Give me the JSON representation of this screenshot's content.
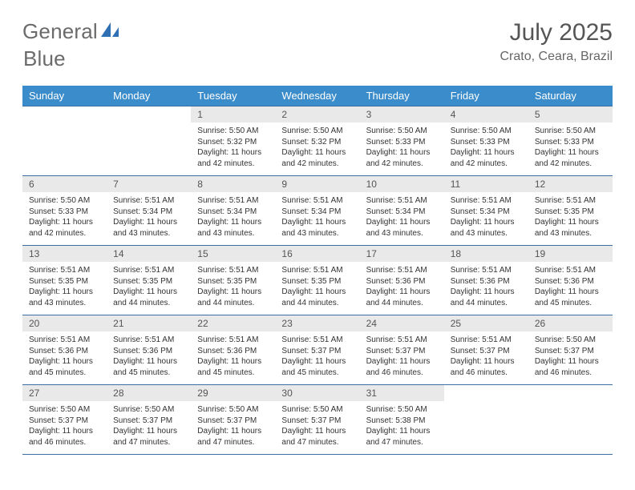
{
  "brand": {
    "name_part1": "General",
    "name_part2": "Blue",
    "logo_color": "#2f6fb3",
    "text_color": "#6b6b6b"
  },
  "header": {
    "title": "July 2025",
    "location": "Crato, Ceara, Brazil"
  },
  "theme": {
    "header_bg": "#3b8ccb",
    "header_fg": "#ffffff",
    "row_border": "#3b6ea5",
    "daynum_bg": "#e9e9e9",
    "daynum_fg": "#555555",
    "body_fg": "#333333",
    "page_bg": "#ffffff"
  },
  "day_names": [
    "Sunday",
    "Monday",
    "Tuesday",
    "Wednesday",
    "Thursday",
    "Friday",
    "Saturday"
  ],
  "calendar": {
    "first_weekday_index": 2,
    "days_in_month": 31
  },
  "days": {
    "1": {
      "sunrise": "5:50 AM",
      "sunset": "5:32 PM",
      "daylight": "11 hours and 42 minutes."
    },
    "2": {
      "sunrise": "5:50 AM",
      "sunset": "5:32 PM",
      "daylight": "11 hours and 42 minutes."
    },
    "3": {
      "sunrise": "5:50 AM",
      "sunset": "5:33 PM",
      "daylight": "11 hours and 42 minutes."
    },
    "4": {
      "sunrise": "5:50 AM",
      "sunset": "5:33 PM",
      "daylight": "11 hours and 42 minutes."
    },
    "5": {
      "sunrise": "5:50 AM",
      "sunset": "5:33 PM",
      "daylight": "11 hours and 42 minutes."
    },
    "6": {
      "sunrise": "5:50 AM",
      "sunset": "5:33 PM",
      "daylight": "11 hours and 42 minutes."
    },
    "7": {
      "sunrise": "5:51 AM",
      "sunset": "5:34 PM",
      "daylight": "11 hours and 43 minutes."
    },
    "8": {
      "sunrise": "5:51 AM",
      "sunset": "5:34 PM",
      "daylight": "11 hours and 43 minutes."
    },
    "9": {
      "sunrise": "5:51 AM",
      "sunset": "5:34 PM",
      "daylight": "11 hours and 43 minutes."
    },
    "10": {
      "sunrise": "5:51 AM",
      "sunset": "5:34 PM",
      "daylight": "11 hours and 43 minutes."
    },
    "11": {
      "sunrise": "5:51 AM",
      "sunset": "5:34 PM",
      "daylight": "11 hours and 43 minutes."
    },
    "12": {
      "sunrise": "5:51 AM",
      "sunset": "5:35 PM",
      "daylight": "11 hours and 43 minutes."
    },
    "13": {
      "sunrise": "5:51 AM",
      "sunset": "5:35 PM",
      "daylight": "11 hours and 43 minutes."
    },
    "14": {
      "sunrise": "5:51 AM",
      "sunset": "5:35 PM",
      "daylight": "11 hours and 44 minutes."
    },
    "15": {
      "sunrise": "5:51 AM",
      "sunset": "5:35 PM",
      "daylight": "11 hours and 44 minutes."
    },
    "16": {
      "sunrise": "5:51 AM",
      "sunset": "5:35 PM",
      "daylight": "11 hours and 44 minutes."
    },
    "17": {
      "sunrise": "5:51 AM",
      "sunset": "5:36 PM",
      "daylight": "11 hours and 44 minutes."
    },
    "18": {
      "sunrise": "5:51 AM",
      "sunset": "5:36 PM",
      "daylight": "11 hours and 44 minutes."
    },
    "19": {
      "sunrise": "5:51 AM",
      "sunset": "5:36 PM",
      "daylight": "11 hours and 45 minutes."
    },
    "20": {
      "sunrise": "5:51 AM",
      "sunset": "5:36 PM",
      "daylight": "11 hours and 45 minutes."
    },
    "21": {
      "sunrise": "5:51 AM",
      "sunset": "5:36 PM",
      "daylight": "11 hours and 45 minutes."
    },
    "22": {
      "sunrise": "5:51 AM",
      "sunset": "5:36 PM",
      "daylight": "11 hours and 45 minutes."
    },
    "23": {
      "sunrise": "5:51 AM",
      "sunset": "5:37 PM",
      "daylight": "11 hours and 45 minutes."
    },
    "24": {
      "sunrise": "5:51 AM",
      "sunset": "5:37 PM",
      "daylight": "11 hours and 46 minutes."
    },
    "25": {
      "sunrise": "5:51 AM",
      "sunset": "5:37 PM",
      "daylight": "11 hours and 46 minutes."
    },
    "26": {
      "sunrise": "5:50 AM",
      "sunset": "5:37 PM",
      "daylight": "11 hours and 46 minutes."
    },
    "27": {
      "sunrise": "5:50 AM",
      "sunset": "5:37 PM",
      "daylight": "11 hours and 46 minutes."
    },
    "28": {
      "sunrise": "5:50 AM",
      "sunset": "5:37 PM",
      "daylight": "11 hours and 47 minutes."
    },
    "29": {
      "sunrise": "5:50 AM",
      "sunset": "5:37 PM",
      "daylight": "11 hours and 47 minutes."
    },
    "30": {
      "sunrise": "5:50 AM",
      "sunset": "5:37 PM",
      "daylight": "11 hours and 47 minutes."
    },
    "31": {
      "sunrise": "5:50 AM",
      "sunset": "5:38 PM",
      "daylight": "11 hours and 47 minutes."
    }
  },
  "labels": {
    "sunrise": "Sunrise:",
    "sunset": "Sunset:",
    "daylight": "Daylight:"
  }
}
